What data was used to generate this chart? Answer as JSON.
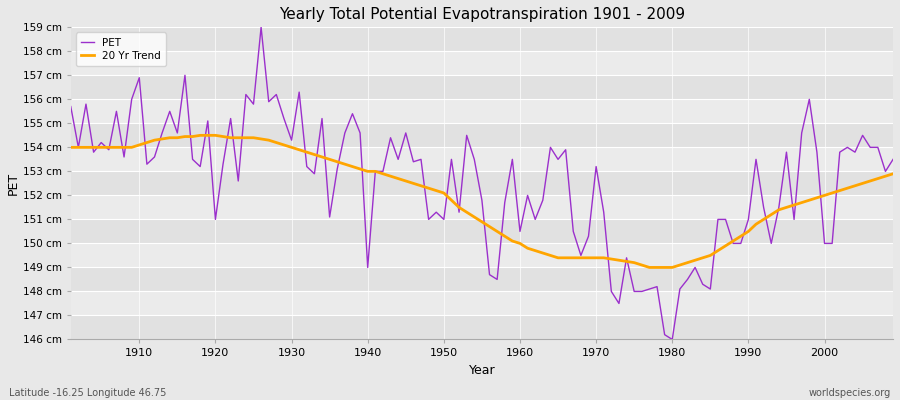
{
  "title": "Yearly Total Potential Evapotranspiration 1901 - 2009",
  "xlabel": "Year",
  "ylabel": "PET",
  "pet_label": "PET",
  "trend_label": "20 Yr Trend",
  "pet_color": "#9B30CC",
  "trend_color": "#FFA500",
  "bg_color": "#E8E8E8",
  "plot_bg_color": "#EBEBEB",
  "grid_color": "#FFFFFF",
  "ylim": [
    146,
    159
  ],
  "xlim": [
    1901,
    2009
  ],
  "ytick_labels": [
    "146 cm",
    "147 cm",
    "148 cm",
    "149 cm",
    "150 cm",
    "151 cm",
    "152 cm",
    "153 cm",
    "154 cm",
    "155 cm",
    "156 cm",
    "157 cm",
    "158 cm",
    "159 cm"
  ],
  "ytick_values": [
    146,
    147,
    148,
    149,
    150,
    151,
    152,
    153,
    154,
    155,
    156,
    157,
    158,
    159
  ],
  "bottom_left_text": "Latitude -16.25 Longitude 46.75",
  "bottom_right_text": "worldspecies.org",
  "years": [
    1901,
    1902,
    1903,
    1904,
    1905,
    1906,
    1907,
    1908,
    1909,
    1910,
    1911,
    1912,
    1913,
    1914,
    1915,
    1916,
    1917,
    1918,
    1919,
    1920,
    1921,
    1922,
    1923,
    1924,
    1925,
    1926,
    1927,
    1928,
    1929,
    1930,
    1931,
    1932,
    1933,
    1934,
    1935,
    1936,
    1937,
    1938,
    1939,
    1940,
    1941,
    1942,
    1943,
    1944,
    1945,
    1946,
    1947,
    1948,
    1949,
    1950,
    1951,
    1952,
    1953,
    1954,
    1955,
    1956,
    1957,
    1958,
    1959,
    1960,
    1961,
    1962,
    1963,
    1964,
    1965,
    1966,
    1967,
    1968,
    1969,
    1970,
    1971,
    1972,
    1973,
    1974,
    1975,
    1976,
    1977,
    1978,
    1979,
    1980,
    1981,
    1982,
    1983,
    1984,
    1985,
    1986,
    1987,
    1988,
    1989,
    1990,
    1991,
    1992,
    1993,
    1994,
    1995,
    1996,
    1997,
    1998,
    1999,
    2000,
    2001,
    2002,
    2003,
    2004,
    2005,
    2006,
    2007,
    2008,
    2009
  ],
  "pet_values": [
    155.7,
    154.0,
    155.8,
    153.8,
    154.2,
    153.9,
    155.5,
    153.6,
    156.0,
    156.9,
    153.3,
    153.6,
    154.6,
    155.5,
    154.6,
    157.0,
    153.5,
    153.2,
    155.1,
    151.0,
    153.3,
    155.2,
    152.6,
    156.2,
    155.8,
    159.0,
    155.9,
    156.2,
    155.2,
    154.3,
    156.3,
    153.2,
    152.9,
    155.2,
    151.1,
    153.1,
    154.6,
    155.4,
    154.6,
    149.0,
    153.0,
    153.0,
    154.4,
    153.5,
    154.6,
    153.4,
    153.5,
    151.0,
    151.3,
    151.0,
    153.5,
    151.3,
    154.5,
    153.5,
    151.8,
    148.7,
    148.5,
    151.7,
    153.5,
    150.5,
    152.0,
    151.0,
    151.8,
    154.0,
    153.5,
    153.9,
    150.5,
    149.5,
    150.3,
    153.2,
    151.3,
    148.0,
    147.5,
    149.4,
    148.0,
    148.0,
    148.1,
    148.2,
    146.2,
    146.0,
    148.1,
    148.5,
    149.0,
    148.3,
    148.1,
    151.0,
    151.0,
    150.0,
    150.0,
    151.0,
    153.5,
    151.5,
    150.0,
    151.5,
    153.8,
    151.0,
    154.6,
    156.0,
    153.8,
    150.0,
    150.0,
    153.8,
    154.0,
    153.8,
    154.5,
    154.0,
    154.0,
    153.0,
    153.5
  ],
  "trend_values": [
    154.0,
    154.0,
    154.0,
    154.0,
    154.0,
    154.0,
    154.0,
    154.0,
    154.0,
    154.1,
    154.2,
    154.3,
    154.35,
    154.4,
    154.4,
    154.45,
    154.45,
    154.5,
    154.5,
    154.5,
    154.45,
    154.4,
    154.4,
    154.4,
    154.4,
    154.35,
    154.3,
    154.2,
    154.1,
    154.0,
    153.9,
    153.8,
    153.7,
    153.6,
    153.5,
    153.4,
    153.3,
    153.2,
    153.1,
    153.0,
    153.0,
    152.9,
    152.8,
    152.7,
    152.6,
    152.5,
    152.4,
    152.3,
    152.2,
    152.1,
    151.8,
    151.5,
    151.3,
    151.1,
    150.9,
    150.7,
    150.5,
    150.3,
    150.1,
    150.0,
    149.8,
    149.7,
    149.6,
    149.5,
    149.4,
    149.4,
    149.4,
    149.4,
    149.4,
    149.4,
    149.4,
    149.35,
    149.3,
    149.25,
    149.2,
    149.1,
    149.0,
    149.0,
    149.0,
    149.0,
    149.1,
    149.2,
    149.3,
    149.4,
    149.5,
    149.7,
    149.9,
    150.1,
    150.3,
    150.5,
    150.8,
    151.0,
    151.2,
    151.4,
    151.5,
    151.6,
    151.7,
    151.8,
    151.9,
    152.0,
    152.1,
    152.2,
    152.3,
    152.4,
    152.5,
    152.6,
    152.7,
    152.8,
    152.9
  ]
}
